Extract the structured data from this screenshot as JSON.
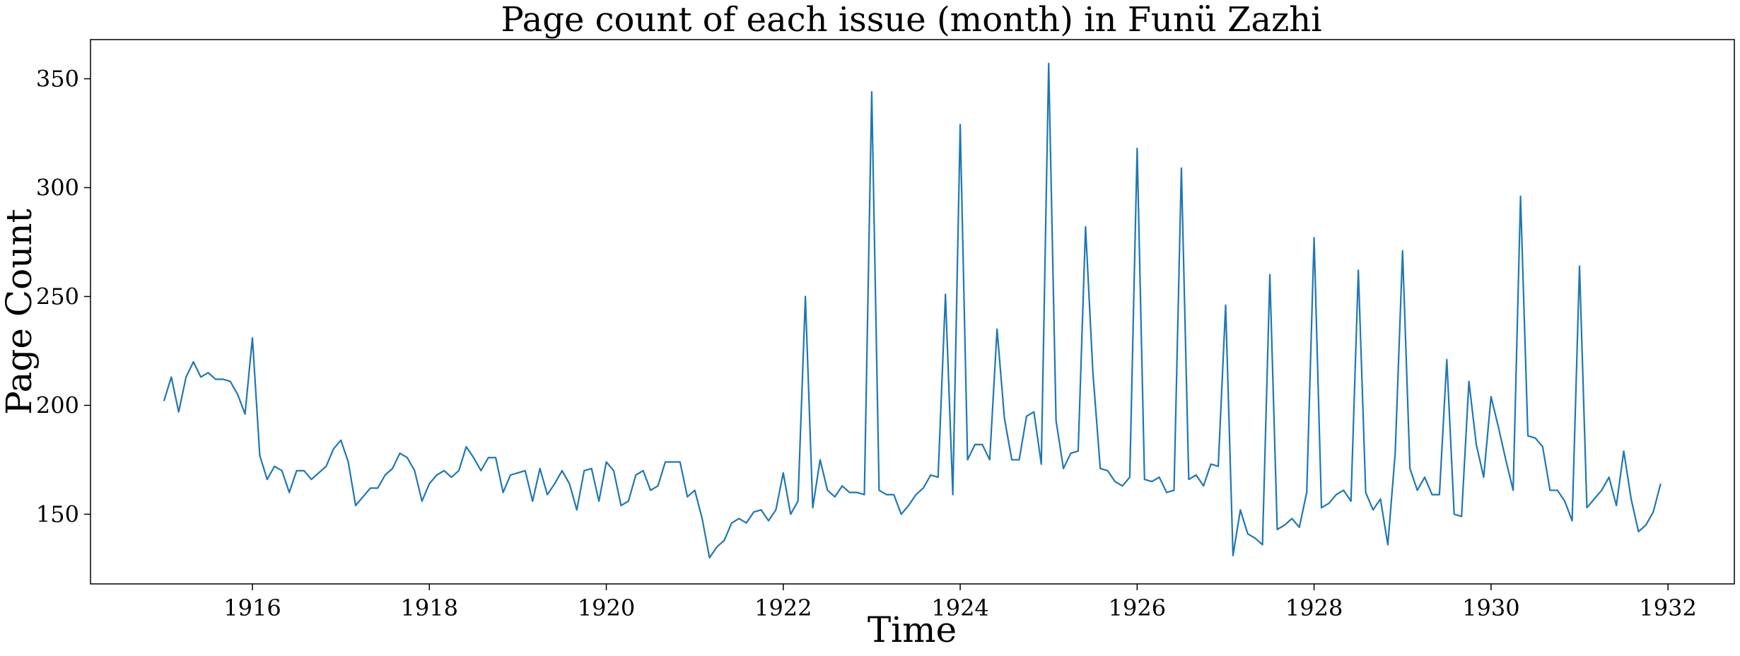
{
  "chart_data": {
    "type": "line",
    "title": "Page count of each issue (month) in Funü Zazhi",
    "xlabel": "Time",
    "ylabel": "Page Count",
    "x_start": "1915-01",
    "x_step": "month",
    "xlim": [
      1914.17,
      1932.75
    ],
    "ylim": [
      118,
      368
    ],
    "xticks": [
      1916,
      1918,
      1920,
      1922,
      1924,
      1926,
      1928,
      1930,
      1932
    ],
    "yticks": [
      150,
      200,
      250,
      300,
      350
    ],
    "grid": false,
    "series": [
      {
        "name": "",
        "color": "#1f77b4",
        "values": [
          202,
          213,
          197,
          213,
          220,
          213,
          215,
          212,
          212,
          211,
          205,
          196,
          231,
          177,
          166,
          172,
          170,
          160,
          170,
          170,
          166,
          169,
          172,
          180,
          184,
          174,
          154,
          158,
          162,
          162,
          168,
          171,
          178,
          176,
          170,
          156,
          164,
          168,
          170,
          167,
          170,
          181,
          176,
          170,
          176,
          176,
          160,
          168,
          169,
          170,
          156,
          171,
          159,
          164,
          170,
          164,
          152,
          170,
          171,
          156,
          174,
          170,
          154,
          156,
          168,
          170,
          161,
          163,
          174,
          174,
          174,
          158,
          161,
          148,
          130,
          135,
          138,
          146,
          148,
          146,
          151,
          152,
          147,
          152,
          169,
          150,
          156,
          250,
          153,
          175,
          161,
          158,
          163,
          160,
          160,
          159,
          344,
          161,
          159,
          159,
          150,
          154,
          159,
          162,
          168,
          167,
          251,
          159,
          329,
          175,
          182,
          182,
          175,
          235,
          194,
          175,
          175,
          195,
          197,
          173,
          357,
          193,
          171,
          178,
          179,
          282,
          215,
          171,
          170,
          165,
          163,
          167,
          318,
          166,
          165,
          167,
          160,
          161,
          309,
          166,
          168,
          163,
          173,
          172,
          246,
          131,
          152,
          141,
          139,
          136,
          260,
          143,
          145,
          148,
          144,
          160,
          277,
          153,
          155,
          159,
          161,
          156,
          262,
          160,
          152,
          157,
          136,
          178,
          271,
          171,
          161,
          167,
          159,
          159,
          221,
          150,
          149,
          211,
          182,
          167,
          204,
          190,
          175,
          161,
          296,
          186,
          185,
          181,
          161,
          161,
          156,
          147,
          264,
          153,
          157,
          161,
          167,
          154,
          179,
          157,
          142,
          145,
          151,
          164
        ]
      }
    ]
  }
}
